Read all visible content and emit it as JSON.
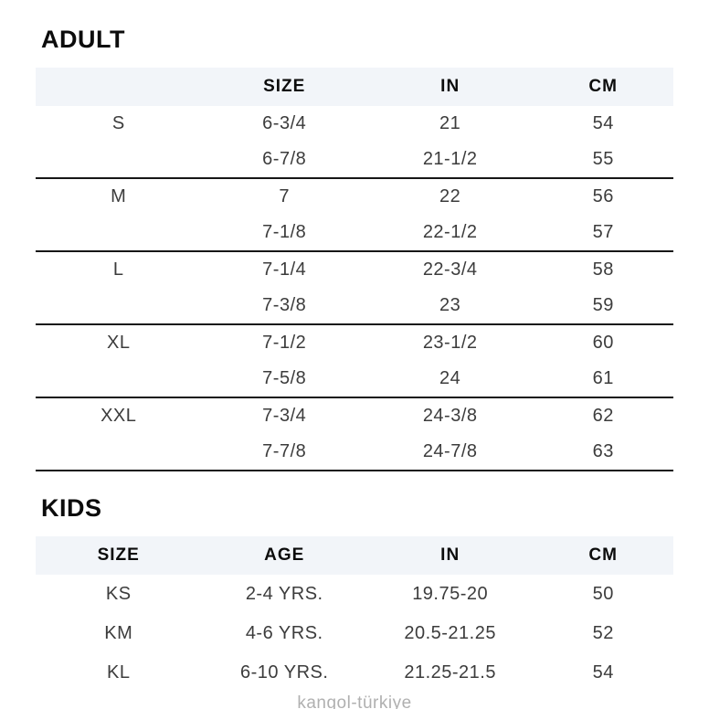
{
  "adult": {
    "title": "ADULT",
    "columns": [
      "",
      "SIZE",
      "IN",
      "CM"
    ],
    "groups": [
      {
        "label": "S",
        "rows": [
          [
            "6-3/4",
            "21",
            "54"
          ],
          [
            "6-7/8",
            "21-1/2",
            "55"
          ]
        ]
      },
      {
        "label": "M",
        "rows": [
          [
            "7",
            "22",
            "56"
          ],
          [
            "7-1/8",
            "22-1/2",
            "57"
          ]
        ]
      },
      {
        "label": "L",
        "rows": [
          [
            "7-1/4",
            "22-3/4",
            "58"
          ],
          [
            "7-3/8",
            "23",
            "59"
          ]
        ]
      },
      {
        "label": "XL",
        "rows": [
          [
            "7-1/2",
            "23-1/2",
            "60"
          ],
          [
            "7-5/8",
            "24",
            "61"
          ]
        ]
      },
      {
        "label": "XXL",
        "rows": [
          [
            "7-3/4",
            "24-3/8",
            "62"
          ],
          [
            "7-7/8",
            "24-7/8",
            "63"
          ]
        ]
      }
    ]
  },
  "kids": {
    "title": "KIDS",
    "columns": [
      "SIZE",
      "AGE",
      "IN",
      "CM"
    ],
    "rows": [
      [
        "KS",
        "2-4 YRS.",
        "19.75-20",
        "50"
      ],
      [
        "KM",
        "4-6 YRS.",
        "20.5-21.25",
        "52"
      ],
      [
        "KL",
        "6-10 YRS.",
        "21.25-21.5",
        "54"
      ]
    ]
  },
  "watermark": "kangol-türkiye",
  "colors": {
    "header_background": "#f2f5f9",
    "rule_line": "#161616",
    "heading_text": "#0c0c0c",
    "data_text": "#3c3c3c",
    "watermark_text": "#b0b0b0"
  }
}
